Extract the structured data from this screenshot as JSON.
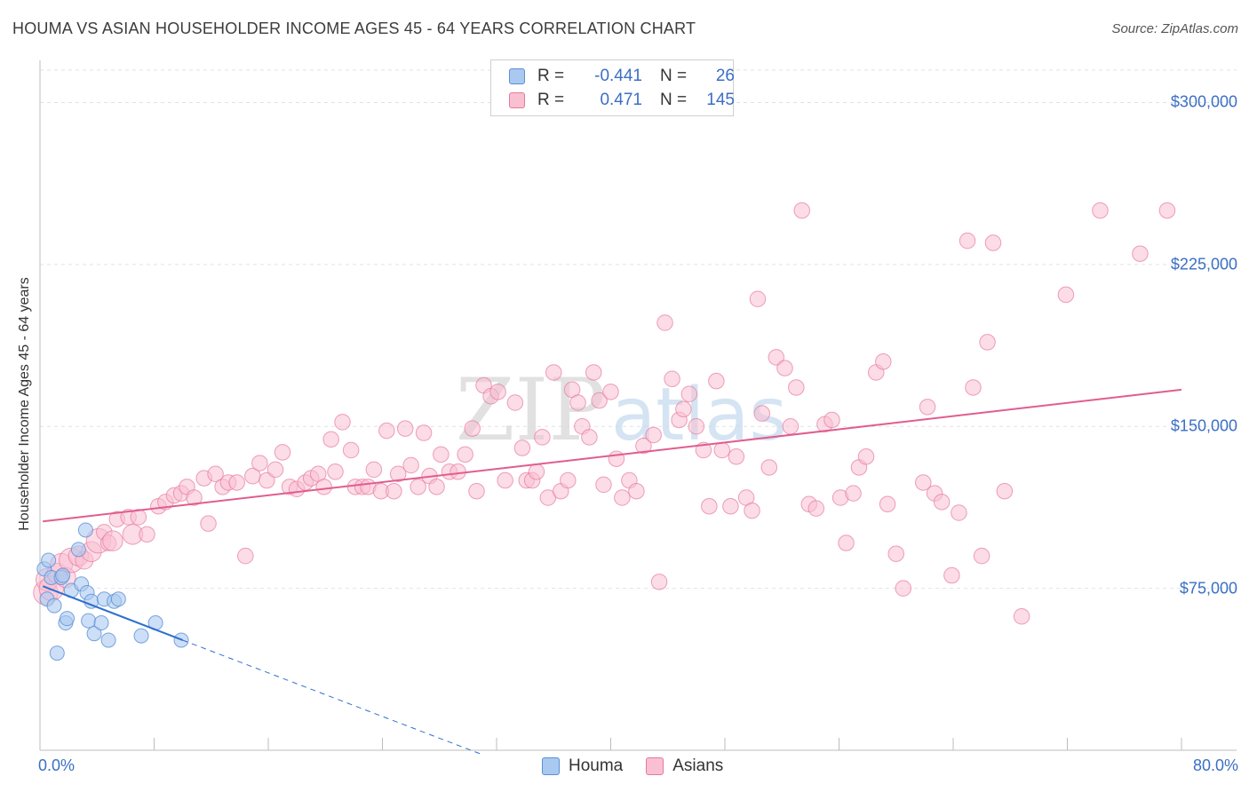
{
  "title": "HOUMA VS ASIAN HOUSEHOLDER INCOME AGES 45 - 64 YEARS CORRELATION CHART",
  "source": "Source: ZipAtlas.com",
  "watermark": {
    "part1": "ZIP",
    "part2": "atlas"
  },
  "legend": {
    "rows": [
      {
        "r_label": "R =",
        "r_value": "-0.441",
        "n_label": "N =",
        "n_value": "26",
        "color": "#aac9f0",
        "border": "#5b8fd6"
      },
      {
        "r_label": "R =",
        "r_value": "0.471",
        "n_label": "N =",
        "n_value": "145",
        "color": "#f9c0d2",
        "border": "#e6799d"
      }
    ]
  },
  "bottom_legend": [
    {
      "label": "Houma",
      "color": "#aac9f0",
      "border": "#5b8fd6"
    },
    {
      "label": "Asians",
      "color": "#f9c0d2",
      "border": "#e6799d"
    }
  ],
  "chart_data": {
    "type": "scatter",
    "xlabel": "",
    "ylabel": "Householder Income Ages 45 - 64 years",
    "xlim": [
      0,
      80
    ],
    "ylim": [
      0,
      315000
    ],
    "x_ticks": [
      "0.0%",
      "80.0%"
    ],
    "y_ticks": [
      {
        "value": 75000,
        "label": "$75,000"
      },
      {
        "value": 150000,
        "label": "$150,000"
      },
      {
        "value": 225000,
        "label": "$225,000"
      },
      {
        "value": 300000,
        "label": "$300,000"
      }
    ],
    "grid": true,
    "series": [
      {
        "name": "Houma",
        "color": "#aac9f0",
        "stroke": "#5b8fd6",
        "trend": {
          "x": [
            0.2,
            10.0
          ],
          "y": [
            76000,
            51000
          ],
          "color": "#2f6fd0"
        },
        "trend_dashed": {
          "x": [
            10.0,
            31.0
          ],
          "y": [
            51000,
            -2000
          ]
        },
        "points": [
          [
            0.3,
            84000
          ],
          [
            0.5,
            70000
          ],
          [
            0.6,
            88000
          ],
          [
            0.8,
            80000
          ],
          [
            1.0,
            67000
          ],
          [
            1.2,
            45000
          ],
          [
            1.5,
            80000
          ],
          [
            1.6,
            81000
          ],
          [
            1.8,
            59000
          ],
          [
            1.9,
            61000
          ],
          [
            2.2,
            74000
          ],
          [
            2.7,
            93000
          ],
          [
            2.9,
            77000
          ],
          [
            3.2,
            102000
          ],
          [
            3.3,
            73000
          ],
          [
            3.4,
            60000
          ],
          [
            3.6,
            69000
          ],
          [
            3.8,
            54000
          ],
          [
            4.3,
            59000
          ],
          [
            4.5,
            70000
          ],
          [
            4.8,
            51000
          ],
          [
            5.2,
            69000
          ],
          [
            5.5,
            70000
          ],
          [
            7.1,
            53000
          ],
          [
            8.1,
            59000
          ],
          [
            9.9,
            51000
          ]
        ]
      },
      {
        "name": "Asians",
        "color": "#f9c0d2",
        "stroke": "#e6799d",
        "trend": {
          "x": [
            0.2,
            80.0
          ],
          "y": [
            106000,
            167000
          ],
          "color": "#e05d8f"
        },
        "points": [
          [
            0.4,
            73000,
            22
          ],
          [
            0.5,
            79000,
            20
          ],
          [
            0.8,
            75000,
            22
          ],
          [
            1.2,
            82000,
            18
          ],
          [
            1.5,
            86000,
            20
          ],
          [
            1.8,
            80000,
            18
          ],
          [
            2.2,
            88000,
            22
          ],
          [
            2.7,
            90000,
            18
          ],
          [
            3.1,
            88000,
            16
          ],
          [
            3.6,
            92000,
            18
          ],
          [
            4.1,
            97000,
            22
          ],
          [
            4.5,
            101000,
            14
          ],
          [
            4.8,
            96000,
            14
          ],
          [
            5.1,
            97000,
            18
          ],
          [
            5.4,
            107000,
            14
          ],
          [
            6.2,
            108000,
            14
          ],
          [
            6.5,
            100000,
            18
          ],
          [
            6.9,
            108000,
            14
          ],
          [
            7.5,
            100000,
            14
          ],
          [
            8.3,
            113000,
            14
          ],
          [
            8.8,
            115000,
            14
          ],
          [
            9.4,
            118000,
            14
          ],
          [
            9.9,
            119000,
            14
          ],
          [
            10.3,
            122000,
            14
          ],
          [
            10.8,
            117000,
            14
          ],
          [
            11.5,
            126000,
            14
          ],
          [
            11.8,
            105000,
            14
          ],
          [
            12.3,
            128000,
            14
          ],
          [
            12.8,
            122000,
            14
          ],
          [
            13.2,
            124000,
            14
          ],
          [
            13.8,
            124000,
            14
          ],
          [
            14.4,
            90000,
            14
          ],
          [
            14.9,
            127000,
            14
          ],
          [
            15.4,
            133000,
            14
          ],
          [
            15.9,
            125000,
            14
          ],
          [
            16.5,
            130000,
            14
          ],
          [
            17.0,
            138000,
            14
          ],
          [
            17.5,
            122000,
            14
          ],
          [
            18.0,
            121000,
            14
          ],
          [
            18.6,
            124000,
            14
          ],
          [
            19.0,
            126000,
            14
          ],
          [
            19.5,
            128000,
            14
          ],
          [
            19.9,
            122000,
            14
          ],
          [
            20.4,
            144000,
            14
          ],
          [
            20.7,
            129000,
            14
          ],
          [
            21.2,
            152000,
            14
          ],
          [
            21.8,
            139000,
            14
          ],
          [
            22.1,
            122000,
            14
          ],
          [
            22.6,
            122000,
            14
          ],
          [
            23.0,
            122000,
            14
          ],
          [
            23.4,
            130000,
            14
          ],
          [
            23.9,
            120000,
            14
          ],
          [
            24.3,
            148000,
            14
          ],
          [
            24.8,
            120000,
            14
          ],
          [
            25.1,
            128000,
            14
          ],
          [
            25.6,
            149000,
            14
          ],
          [
            26.0,
            132000,
            14
          ],
          [
            26.5,
            122000,
            14
          ],
          [
            26.9,
            147000,
            14
          ],
          [
            27.3,
            127000,
            14
          ],
          [
            27.8,
            122000,
            14
          ],
          [
            28.1,
            137000,
            14
          ],
          [
            28.7,
            129000,
            14
          ],
          [
            29.3,
            129000,
            14
          ],
          [
            29.8,
            137000,
            14
          ],
          [
            30.3,
            149000,
            14
          ],
          [
            30.6,
            120000,
            14
          ],
          [
            31.1,
            169000,
            14
          ],
          [
            31.6,
            164000,
            14
          ],
          [
            32.1,
            166000,
            14
          ],
          [
            32.6,
            125000,
            14
          ],
          [
            33.3,
            161000,
            14
          ],
          [
            33.8,
            140000,
            14
          ],
          [
            34.1,
            125000,
            14
          ],
          [
            34.5,
            125000,
            14
          ],
          [
            34.8,
            129000,
            14
          ],
          [
            35.2,
            145000,
            14
          ],
          [
            35.6,
            117000,
            14
          ],
          [
            36.0,
            175000,
            14
          ],
          [
            36.5,
            120000,
            14
          ],
          [
            37.0,
            125000,
            14
          ],
          [
            37.3,
            167000,
            14
          ],
          [
            37.7,
            161000,
            14
          ],
          [
            38.0,
            150000,
            14
          ],
          [
            38.5,
            145000,
            14
          ],
          [
            38.8,
            175000,
            14
          ],
          [
            39.2,
            162000,
            14
          ],
          [
            39.5,
            123000,
            14
          ],
          [
            40.0,
            166000,
            14
          ],
          [
            40.4,
            135000,
            14
          ],
          [
            40.8,
            117000,
            14
          ],
          [
            41.3,
            125000,
            14
          ],
          [
            41.8,
            120000,
            14
          ],
          [
            42.3,
            141000,
            14
          ],
          [
            43.0,
            146000,
            14
          ],
          [
            43.4,
            78000,
            14
          ],
          [
            43.8,
            198000,
            14
          ],
          [
            44.3,
            172000,
            14
          ],
          [
            44.8,
            153000,
            14
          ],
          [
            45.1,
            158000,
            14
          ],
          [
            45.5,
            165000,
            14
          ],
          [
            46.0,
            150000,
            14
          ],
          [
            46.5,
            139000,
            14
          ],
          [
            46.9,
            113000,
            14
          ],
          [
            47.4,
            171000,
            14
          ],
          [
            47.8,
            139000,
            14
          ],
          [
            48.4,
            113000,
            14
          ],
          [
            48.8,
            136000,
            14
          ],
          [
            49.5,
            117000,
            14
          ],
          [
            49.9,
            111000,
            14
          ],
          [
            50.3,
            209000,
            14
          ],
          [
            50.6,
            156000,
            14
          ],
          [
            51.1,
            131000,
            14
          ],
          [
            51.6,
            182000,
            14
          ],
          [
            52.2,
            177000,
            14
          ],
          [
            52.6,
            150000,
            14
          ],
          [
            53.0,
            168000,
            14
          ],
          [
            53.4,
            250000,
            14
          ],
          [
            53.9,
            114000,
            14
          ],
          [
            54.4,
            112000,
            14
          ],
          [
            55.0,
            151000,
            14
          ],
          [
            55.5,
            153000,
            14
          ],
          [
            56.1,
            117000,
            14
          ],
          [
            56.5,
            96000,
            14
          ],
          [
            57.0,
            119000,
            14
          ],
          [
            57.4,
            131000,
            14
          ],
          [
            57.9,
            136000,
            14
          ],
          [
            58.6,
            175000,
            14
          ],
          [
            59.1,
            180000,
            14
          ],
          [
            59.4,
            114000,
            14
          ],
          [
            60.0,
            91000,
            14
          ],
          [
            60.5,
            75000,
            14
          ],
          [
            61.9,
            124000,
            14
          ],
          [
            62.2,
            159000,
            14
          ],
          [
            62.7,
            119000,
            14
          ],
          [
            63.2,
            115000,
            14
          ],
          [
            63.9,
            81000,
            14
          ],
          [
            64.4,
            110000,
            14
          ],
          [
            65.0,
            236000,
            14
          ],
          [
            65.4,
            168000,
            14
          ],
          [
            66.0,
            90000,
            14
          ],
          [
            66.4,
            189000,
            14
          ],
          [
            66.8,
            235000,
            14
          ],
          [
            67.6,
            120000,
            14
          ],
          [
            68.8,
            62000,
            14
          ],
          [
            71.9,
            211000,
            14
          ],
          [
            74.3,
            250000,
            14
          ],
          [
            77.1,
            230000,
            14
          ],
          [
            79.0,
            250000,
            14
          ]
        ]
      }
    ]
  }
}
